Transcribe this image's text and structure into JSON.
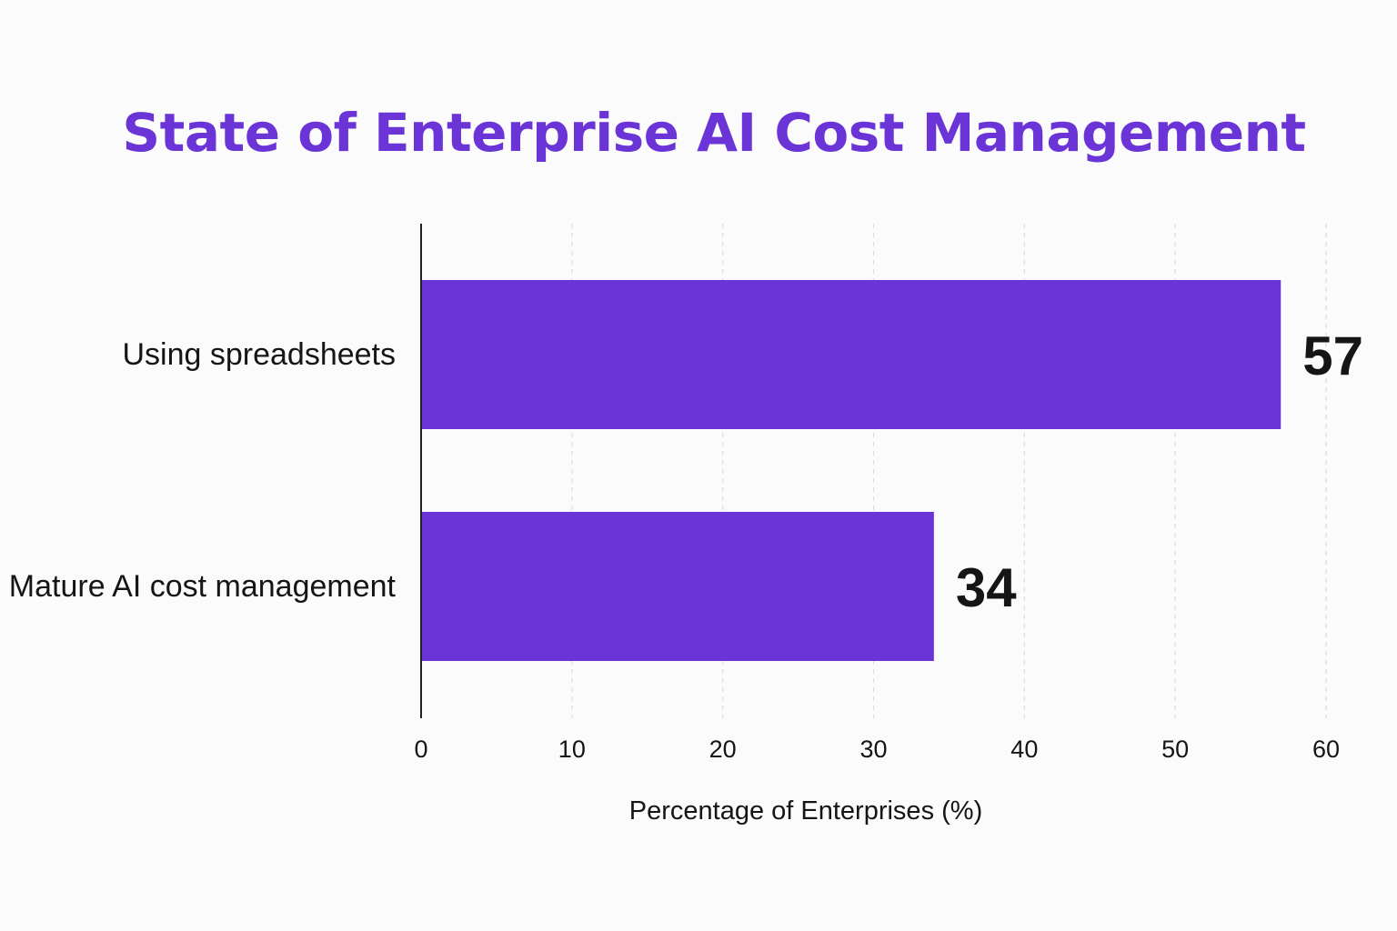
{
  "chart_data": {
    "type": "bar",
    "orientation": "horizontal",
    "title": "State of Enterprise AI Cost Management",
    "categories": [
      "Using spreadsheets",
      "Mature AI cost management"
    ],
    "values": [
      57,
      34
    ],
    "value_labels": [
      "57",
      "34"
    ],
    "xlabel": "Percentage of Enterprises (%)",
    "ylabel": "",
    "xlim": [
      0,
      60
    ],
    "x_ticks": [
      0,
      10,
      20,
      30,
      40,
      50,
      60
    ],
    "x_tick_labels": [
      "0",
      "10",
      "20",
      "30",
      "40",
      "50",
      "60"
    ],
    "grid": "vertical dashed",
    "legend": "none"
  },
  "colors": {
    "title": "#6a34d6",
    "bar": "#6a34d6",
    "text": "#151515",
    "axis": "#222222",
    "grid": "#dddddd",
    "background": "#fbfbfb"
  }
}
